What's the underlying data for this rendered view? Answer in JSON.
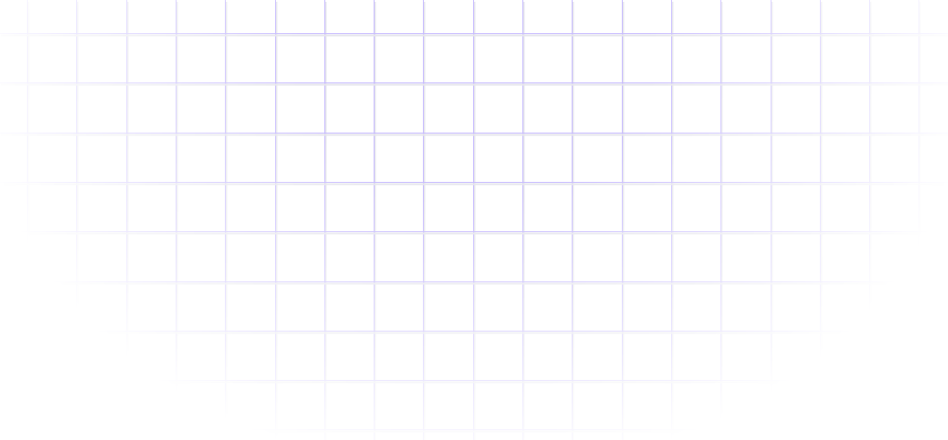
{
  "background": {
    "pattern": "grid",
    "line_color": "#c8bcff",
    "shadow_color": "#e6e6ec",
    "page_color": "#ffffff"
  }
}
